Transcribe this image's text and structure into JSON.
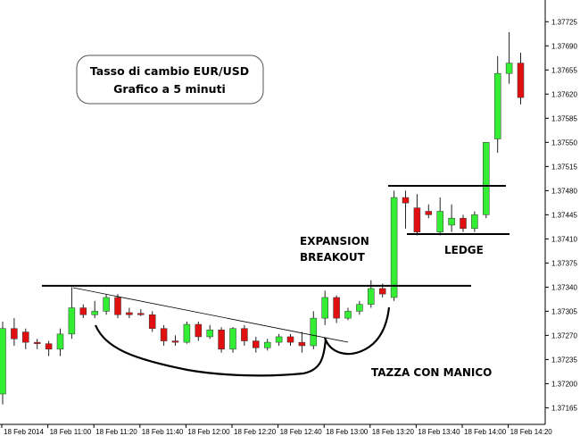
{
  "chart_data": {
    "type": "candlestick",
    "title": "Tasso di cambio EUR/USD",
    "subtitle": "Grafico a 5 minuti",
    "ylim": [
      1.3715,
      1.3775
    ],
    "y_ticks": [
      1.37725,
      1.3769,
      1.37655,
      1.3762,
      1.37585,
      1.3755,
      1.37515,
      1.3748,
      1.37445,
      1.3741,
      1.37375,
      1.3734,
      1.37305,
      1.3727,
      1.37235,
      1.372,
      1.37165
    ],
    "x_tick_labels": [
      "18 Feb 2014",
      "18 Feb 11:00",
      "18 Feb 11:20",
      "18 Feb 11:40",
      "18 Feb 12:00",
      "18 Feb 12:20",
      "18 Feb 12:40",
      "18 Feb 13:00",
      "18 Feb 13:20",
      "18 Feb 13:40",
      "18 Feb 14:00",
      "18 Feb 14:20"
    ],
    "candles": [
      {
        "o": 1.37185,
        "h": 1.3729,
        "l": 1.3717,
        "c": 1.3728
      },
      {
        "o": 1.3728,
        "h": 1.37295,
        "l": 1.37255,
        "c": 1.37265
      },
      {
        "o": 1.37275,
        "h": 1.3728,
        "l": 1.3725,
        "c": 1.3726
      },
      {
        "o": 1.3726,
        "h": 1.37265,
        "l": 1.3725,
        "c": 1.37258
      },
      {
        "o": 1.37258,
        "h": 1.37262,
        "l": 1.3724,
        "c": 1.3725
      },
      {
        "o": 1.3725,
        "h": 1.3728,
        "l": 1.3724,
        "c": 1.37272
      },
      {
        "o": 1.37272,
        "h": 1.3734,
        "l": 1.37265,
        "c": 1.3731
      },
      {
        "o": 1.3731,
        "h": 1.37315,
        "l": 1.37295,
        "c": 1.373
      },
      {
        "o": 1.373,
        "h": 1.3732,
        "l": 1.37295,
        "c": 1.37305
      },
      {
        "o": 1.37305,
        "h": 1.3733,
        "l": 1.373,
        "c": 1.37325
      },
      {
        "o": 1.37325,
        "h": 1.3733,
        "l": 1.37295,
        "c": 1.373
      },
      {
        "o": 1.37303,
        "h": 1.3731,
        "l": 1.37295,
        "c": 1.373
      },
      {
        "o": 1.37302,
        "h": 1.37308,
        "l": 1.37298,
        "c": 1.373
      },
      {
        "o": 1.373,
        "h": 1.37305,
        "l": 1.37275,
        "c": 1.3728
      },
      {
        "o": 1.3728,
        "h": 1.37285,
        "l": 1.37255,
        "c": 1.37262
      },
      {
        "o": 1.37262,
        "h": 1.3727,
        "l": 1.37255,
        "c": 1.3726
      },
      {
        "o": 1.3726,
        "h": 1.3729,
        "l": 1.37258,
        "c": 1.37286
      },
      {
        "o": 1.37286,
        "h": 1.3729,
        "l": 1.37262,
        "c": 1.37268
      },
      {
        "o": 1.37268,
        "h": 1.37285,
        "l": 1.37265,
        "c": 1.37278
      },
      {
        "o": 1.37278,
        "h": 1.37282,
        "l": 1.37245,
        "c": 1.3725
      },
      {
        "o": 1.3725,
        "h": 1.37282,
        "l": 1.37245,
        "c": 1.3728
      },
      {
        "o": 1.3728,
        "h": 1.37285,
        "l": 1.37255,
        "c": 1.37262
      },
      {
        "o": 1.37262,
        "h": 1.37268,
        "l": 1.37245,
        "c": 1.37252
      },
      {
        "o": 1.37252,
        "h": 1.37265,
        "l": 1.37248,
        "c": 1.3726
      },
      {
        "o": 1.3726,
        "h": 1.37272,
        "l": 1.37255,
        "c": 1.37268
      },
      {
        "o": 1.37268,
        "h": 1.37272,
        "l": 1.37255,
        "c": 1.3726
      },
      {
        "o": 1.3726,
        "h": 1.37275,
        "l": 1.37245,
        "c": 1.37255
      },
      {
        "o": 1.37255,
        "h": 1.37305,
        "l": 1.3725,
        "c": 1.37295
      },
      {
        "o": 1.37295,
        "h": 1.37335,
        "l": 1.37285,
        "c": 1.37325
      },
      {
        "o": 1.37325,
        "h": 1.37328,
        "l": 1.37288,
        "c": 1.37295
      },
      {
        "o": 1.37295,
        "h": 1.3731,
        "l": 1.37292,
        "c": 1.37305
      },
      {
        "o": 1.37305,
        "h": 1.3732,
        "l": 1.373,
        "c": 1.37315
      },
      {
        "o": 1.37315,
        "h": 1.3735,
        "l": 1.3731,
        "c": 1.37338
      },
      {
        "o": 1.37338,
        "h": 1.37345,
        "l": 1.37325,
        "c": 1.3733
      },
      {
        "o": 1.37325,
        "h": 1.3748,
        "l": 1.3732,
        "c": 1.3747
      },
      {
        "o": 1.3747,
        "h": 1.3748,
        "l": 1.37425,
        "c": 1.37462
      },
      {
        "o": 1.37455,
        "h": 1.37475,
        "l": 1.37415,
        "c": 1.3742
      },
      {
        "o": 1.3745,
        "h": 1.3746,
        "l": 1.3744,
        "c": 1.37445
      },
      {
        "o": 1.3742,
        "h": 1.3747,
        "l": 1.37415,
        "c": 1.3745
      },
      {
        "o": 1.3743,
        "h": 1.3746,
        "l": 1.3742,
        "c": 1.3744
      },
      {
        "o": 1.3744,
        "h": 1.37445,
        "l": 1.3742,
        "c": 1.37425
      },
      {
        "o": 1.37425,
        "h": 1.3745,
        "l": 1.3742,
        "c": 1.37445
      },
      {
        "o": 1.37445,
        "h": 1.3755,
        "l": 1.3744,
        "c": 1.3755
      },
      {
        "o": 1.37555,
        "h": 1.37675,
        "l": 1.37535,
        "c": 1.3765
      },
      {
        "o": 1.3765,
        "h": 1.3771,
        "l": 1.37635,
        "c": 1.37665
      },
      {
        "o": 1.37665,
        "h": 1.3768,
        "l": 1.37605,
        "c": 1.37615
      }
    ],
    "annotations": {
      "expansion": "EXPANSION",
      "breakout": "BREAKOUT",
      "ledge": "LEDGE",
      "cup_handle": "TAZZA CON MANICO"
    },
    "resistance_level": 1.37342,
    "ledge_top": 1.37487,
    "ledge_bottom": 1.37417,
    "colors": {
      "up": "#33ee33",
      "down": "#e01010",
      "wick": "#222222",
      "lines": "#000000"
    }
  }
}
